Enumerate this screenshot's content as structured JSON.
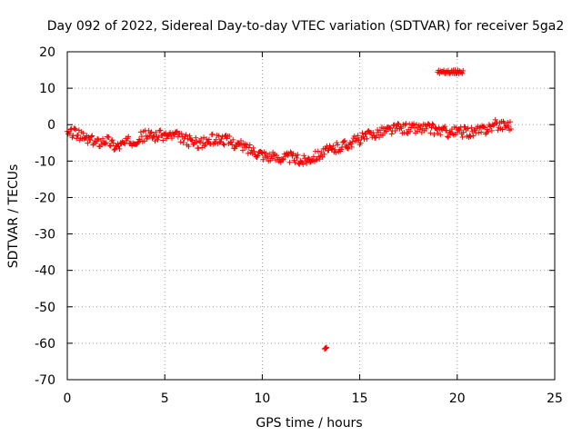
{
  "chart_data": {
    "type": "scatter",
    "title": "Day 092 of 2022, Sidereal Day-to-day VTEC variation (SDTVAR) for receiver 5ga2",
    "xlabel": "GPS time / hours",
    "ylabel": "SDTVAR / TECUs",
    "xlim": [
      0,
      25
    ],
    "ylim": [
      -70,
      20
    ],
    "xticks": [
      0,
      5,
      10,
      15,
      20,
      25
    ],
    "yticks": [
      -70,
      -60,
      -50,
      -40,
      -30,
      -20,
      -10,
      0,
      10,
      20
    ],
    "grid": true,
    "marker": "+",
    "series_color": "#ff0000",
    "trend": {
      "x": [
        0.0,
        0.3,
        0.6,
        1.0,
        1.5,
        2.0,
        2.5,
        3.0,
        3.5,
        4.0,
        4.5,
        5.0,
        5.5,
        6.0,
        6.5,
        7.0,
        7.5,
        8.0,
        8.5,
        9.0,
        9.5,
        10.0,
        10.5,
        11.0,
        11.5,
        12.0,
        12.5,
        13.0,
        13.5,
        14.0,
        14.5,
        15.0,
        15.5,
        16.0,
        16.5,
        17.0,
        17.5,
        18.0,
        18.5,
        19.0,
        19.5,
        20.0,
        20.5,
        21.0,
        21.5,
        22.0,
        22.5,
        22.8
      ],
      "y": [
        -3,
        -2,
        -3,
        -4,
        -5,
        -4,
        -6,
        -5,
        -4,
        -3,
        -3,
        -3,
        -3,
        -4,
        -5,
        -5,
        -4,
        -4,
        -5,
        -6,
        -7,
        -8,
        -9,
        -9,
        -9,
        -10,
        -9,
        -8,
        -7,
        -6,
        -5,
        -4,
        -3,
        -2,
        -1.5,
        -1,
        -1,
        -1,
        -1,
        -1.5,
        -2,
        -2,
        -2,
        -2,
        -1,
        0,
        0,
        0
      ]
    },
    "band_halfwidth": 1.5,
    "points_per_hour": 22,
    "clusters": [
      {
        "x": [
          19.0,
          20.3
        ],
        "y": [
          14.0,
          15.0
        ],
        "n": 30
      },
      {
        "x": [
          13.2,
          13.3
        ],
        "y": [
          -62.0,
          -61.0
        ],
        "n": 5
      }
    ]
  }
}
